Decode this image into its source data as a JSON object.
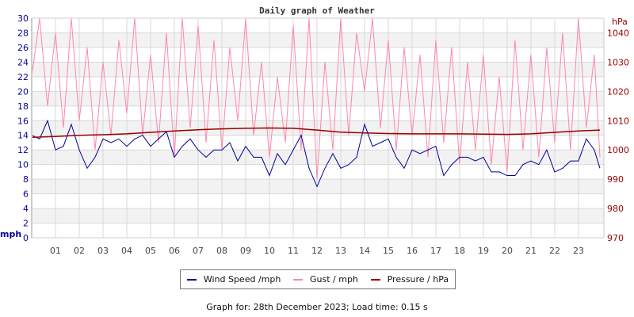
{
  "chart_data": {
    "type": "line",
    "title": "Daily graph of Weather",
    "xlabel": "",
    "x_range_hours": [
      0,
      24
    ],
    "x_tick_labels": [
      "01",
      "02",
      "03",
      "04",
      "05",
      "06",
      "07",
      "08",
      "09",
      "10",
      "11",
      "12",
      "13",
      "14",
      "15",
      "16",
      "17",
      "18",
      "19",
      "20",
      "21",
      "22",
      "23"
    ],
    "y_left": {
      "label": "mph",
      "range": [
        0,
        30
      ],
      "ticks": [
        0,
        2,
        4,
        6,
        8,
        10,
        12,
        14,
        16,
        18,
        20,
        22,
        24,
        26,
        28,
        30
      ],
      "color": "#000099"
    },
    "y_right": {
      "label": "hPa",
      "range": [
        970,
        1045
      ],
      "ticks": [
        970,
        980,
        990,
        1000,
        1010,
        1020,
        1030,
        1040
      ],
      "color": "#990000"
    },
    "grid": true,
    "legend_placement": "bottom",
    "series": [
      {
        "name": "Wind Speed /mph",
        "axis": "left",
        "color": "#000099",
        "x_hours_step": 0.3333,
        "values": [
          14,
          13.5,
          16,
          12,
          12.5,
          15.5,
          12,
          9.5,
          11,
          13.5,
          13,
          13.5,
          12.5,
          13.5,
          14,
          12.5,
          13.5,
          14.5,
          11,
          12.5,
          13.5,
          12,
          11,
          12,
          12,
          13,
          10.5,
          12.5,
          11,
          11,
          8.5,
          11.5,
          10,
          12,
          14,
          9.5,
          7,
          9.5,
          11.5,
          9.5,
          10,
          11,
          15.5,
          12.5,
          13,
          13.5,
          11,
          9.5,
          12,
          11.5,
          12,
          12.5,
          8.5,
          10,
          11,
          11,
          10.5,
          11,
          9,
          9,
          8.5,
          8.5,
          10,
          10.5,
          10,
          12,
          9,
          9.5,
          10.5,
          10.5,
          13.5,
          12,
          9.5
        ]
      },
      {
        "name": "Gust / mph",
        "axis": "left",
        "color": "#ff88aa",
        "x_hours_step": 0.3333,
        "values": [
          22,
          30,
          18,
          28,
          15,
          30,
          16,
          26,
          12,
          24,
          14,
          27,
          17,
          30,
          14,
          25,
          13,
          28,
          11,
          30,
          15,
          29,
          13,
          27,
          12,
          26,
          16,
          30,
          14,
          24,
          11,
          22,
          13,
          29,
          12,
          30,
          8,
          24,
          12,
          30,
          14,
          28,
          20,
          31,
          15,
          27,
          12,
          26,
          14,
          25,
          11,
          27,
          13,
          26,
          10,
          24,
          12,
          25,
          10,
          22,
          9,
          27,
          12,
          25,
          11,
          26,
          13,
          28,
          12,
          30,
          15,
          25,
          11
        ]
      },
      {
        "name": "Pressure / hPa",
        "axis": "right",
        "color": "#990000",
        "x_hours": [
          0,
          1,
          2,
          3,
          4,
          5,
          6,
          7,
          8,
          9,
          10,
          11,
          12,
          13,
          14,
          15,
          16,
          17,
          18,
          19,
          20,
          21,
          22,
          23,
          24
        ],
        "values": [
          1004.3,
          1004.6,
          1005,
          1005.2,
          1005.5,
          1006,
          1006.5,
          1006.9,
          1007.2,
          1007.4,
          1007.5,
          1007.4,
          1006.8,
          1006.1,
          1005.8,
          1005.6,
          1005.5,
          1005.5,
          1005.5,
          1005.4,
          1005.3,
          1005.5,
          1006,
          1006.5,
          1006.8
        ]
      }
    ]
  },
  "footer": "Graph for: 28th December 2023; Load time: 0.15 s"
}
